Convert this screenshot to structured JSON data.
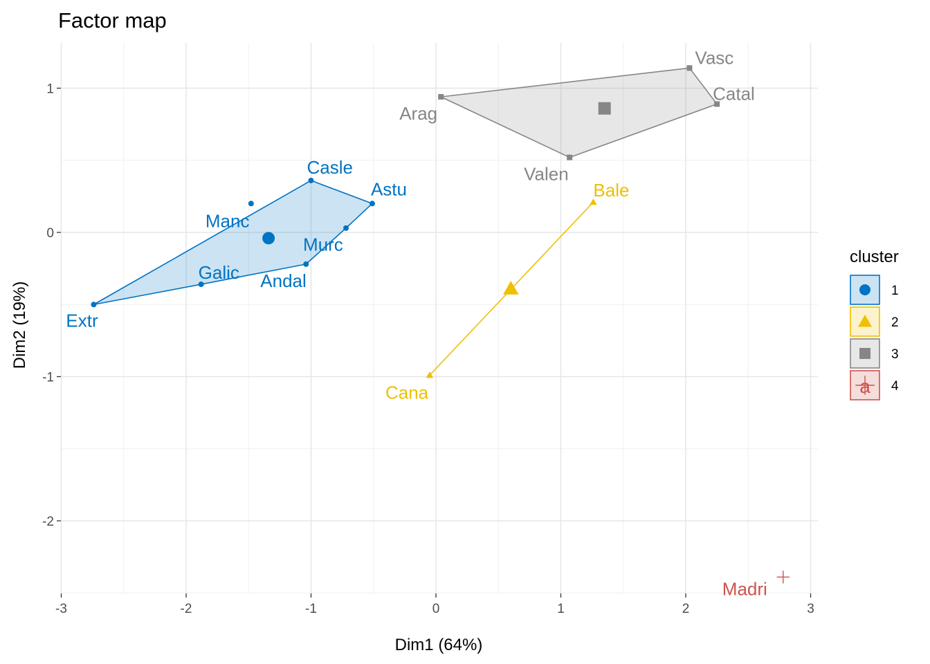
{
  "chart_data": {
    "type": "scatter",
    "title": "Factor map",
    "xlabel": "Dim1 (64%)",
    "ylabel": "Dim2 (19%)",
    "xlim": [
      -3,
      3
    ],
    "ylim": [
      -2.5,
      1.25
    ],
    "x_ticks": [
      -3,
      -2,
      -1,
      0,
      1,
      2,
      3
    ],
    "y_ticks": [
      -2,
      -1,
      0,
      1
    ],
    "x_tick_labels": [
      "-3",
      "-2",
      "-1",
      "0",
      "1",
      "2",
      "3"
    ],
    "y_tick_labels": [
      "-2",
      "-1",
      "0",
      "1"
    ],
    "grid": true,
    "legend": {
      "title": "cluster",
      "position": "right",
      "entries": [
        "1",
        "2",
        "3",
        "4"
      ]
    },
    "clusters": [
      {
        "name": "1",
        "color": "#0073C2",
        "shape": "circle",
        "hull": [
          "Extr",
          "Casle",
          "Astu",
          "Murc",
          "Andal",
          "Galic"
        ],
        "centroid": {
          "x": -1.34,
          "y": -0.04
        },
        "points": [
          {
            "label": "Casle",
            "x": -1.0,
            "y": 0.36
          },
          {
            "label": "Astu",
            "x": -0.51,
            "y": 0.2
          },
          {
            "label": "Manc",
            "x": -1.48,
            "y": 0.2
          },
          {
            "label": "Murc",
            "x": -0.72,
            "y": 0.03
          },
          {
            "label": "Galic",
            "x": -1.88,
            "y": -0.36
          },
          {
            "label": "Andal",
            "x": -1.04,
            "y": -0.22
          },
          {
            "label": "Extr",
            "x": -2.74,
            "y": -0.5
          }
        ]
      },
      {
        "name": "2",
        "color": "#EFC000",
        "shape": "triangle",
        "hull": [
          "Cana",
          "Bale"
        ],
        "centroid": {
          "x": 0.6,
          "y": -0.39
        },
        "points": [
          {
            "label": "Bale",
            "x": 1.26,
            "y": 0.21
          },
          {
            "label": "Cana",
            "x": -0.05,
            "y": -0.99
          }
        ]
      },
      {
        "name": "3",
        "color": "#868686",
        "shape": "square",
        "hull": [
          "Arag",
          "Vasc",
          "Catal",
          "Valen"
        ],
        "centroid": {
          "x": 1.35,
          "y": 0.86
        },
        "points": [
          {
            "label": "Vasc",
            "x": 2.03,
            "y": 1.14
          },
          {
            "label": "Catal",
            "x": 2.25,
            "y": 0.89
          },
          {
            "label": "Arag",
            "x": 0.04,
            "y": 0.94
          },
          {
            "label": "Valen",
            "x": 1.07,
            "y": 0.52
          }
        ]
      },
      {
        "name": "4",
        "color": "#CD534C",
        "shape": "cross",
        "hull": [],
        "centroid": null,
        "points": [
          {
            "label": "Madri",
            "x": 2.78,
            "y": -2.39
          }
        ]
      }
    ]
  }
}
